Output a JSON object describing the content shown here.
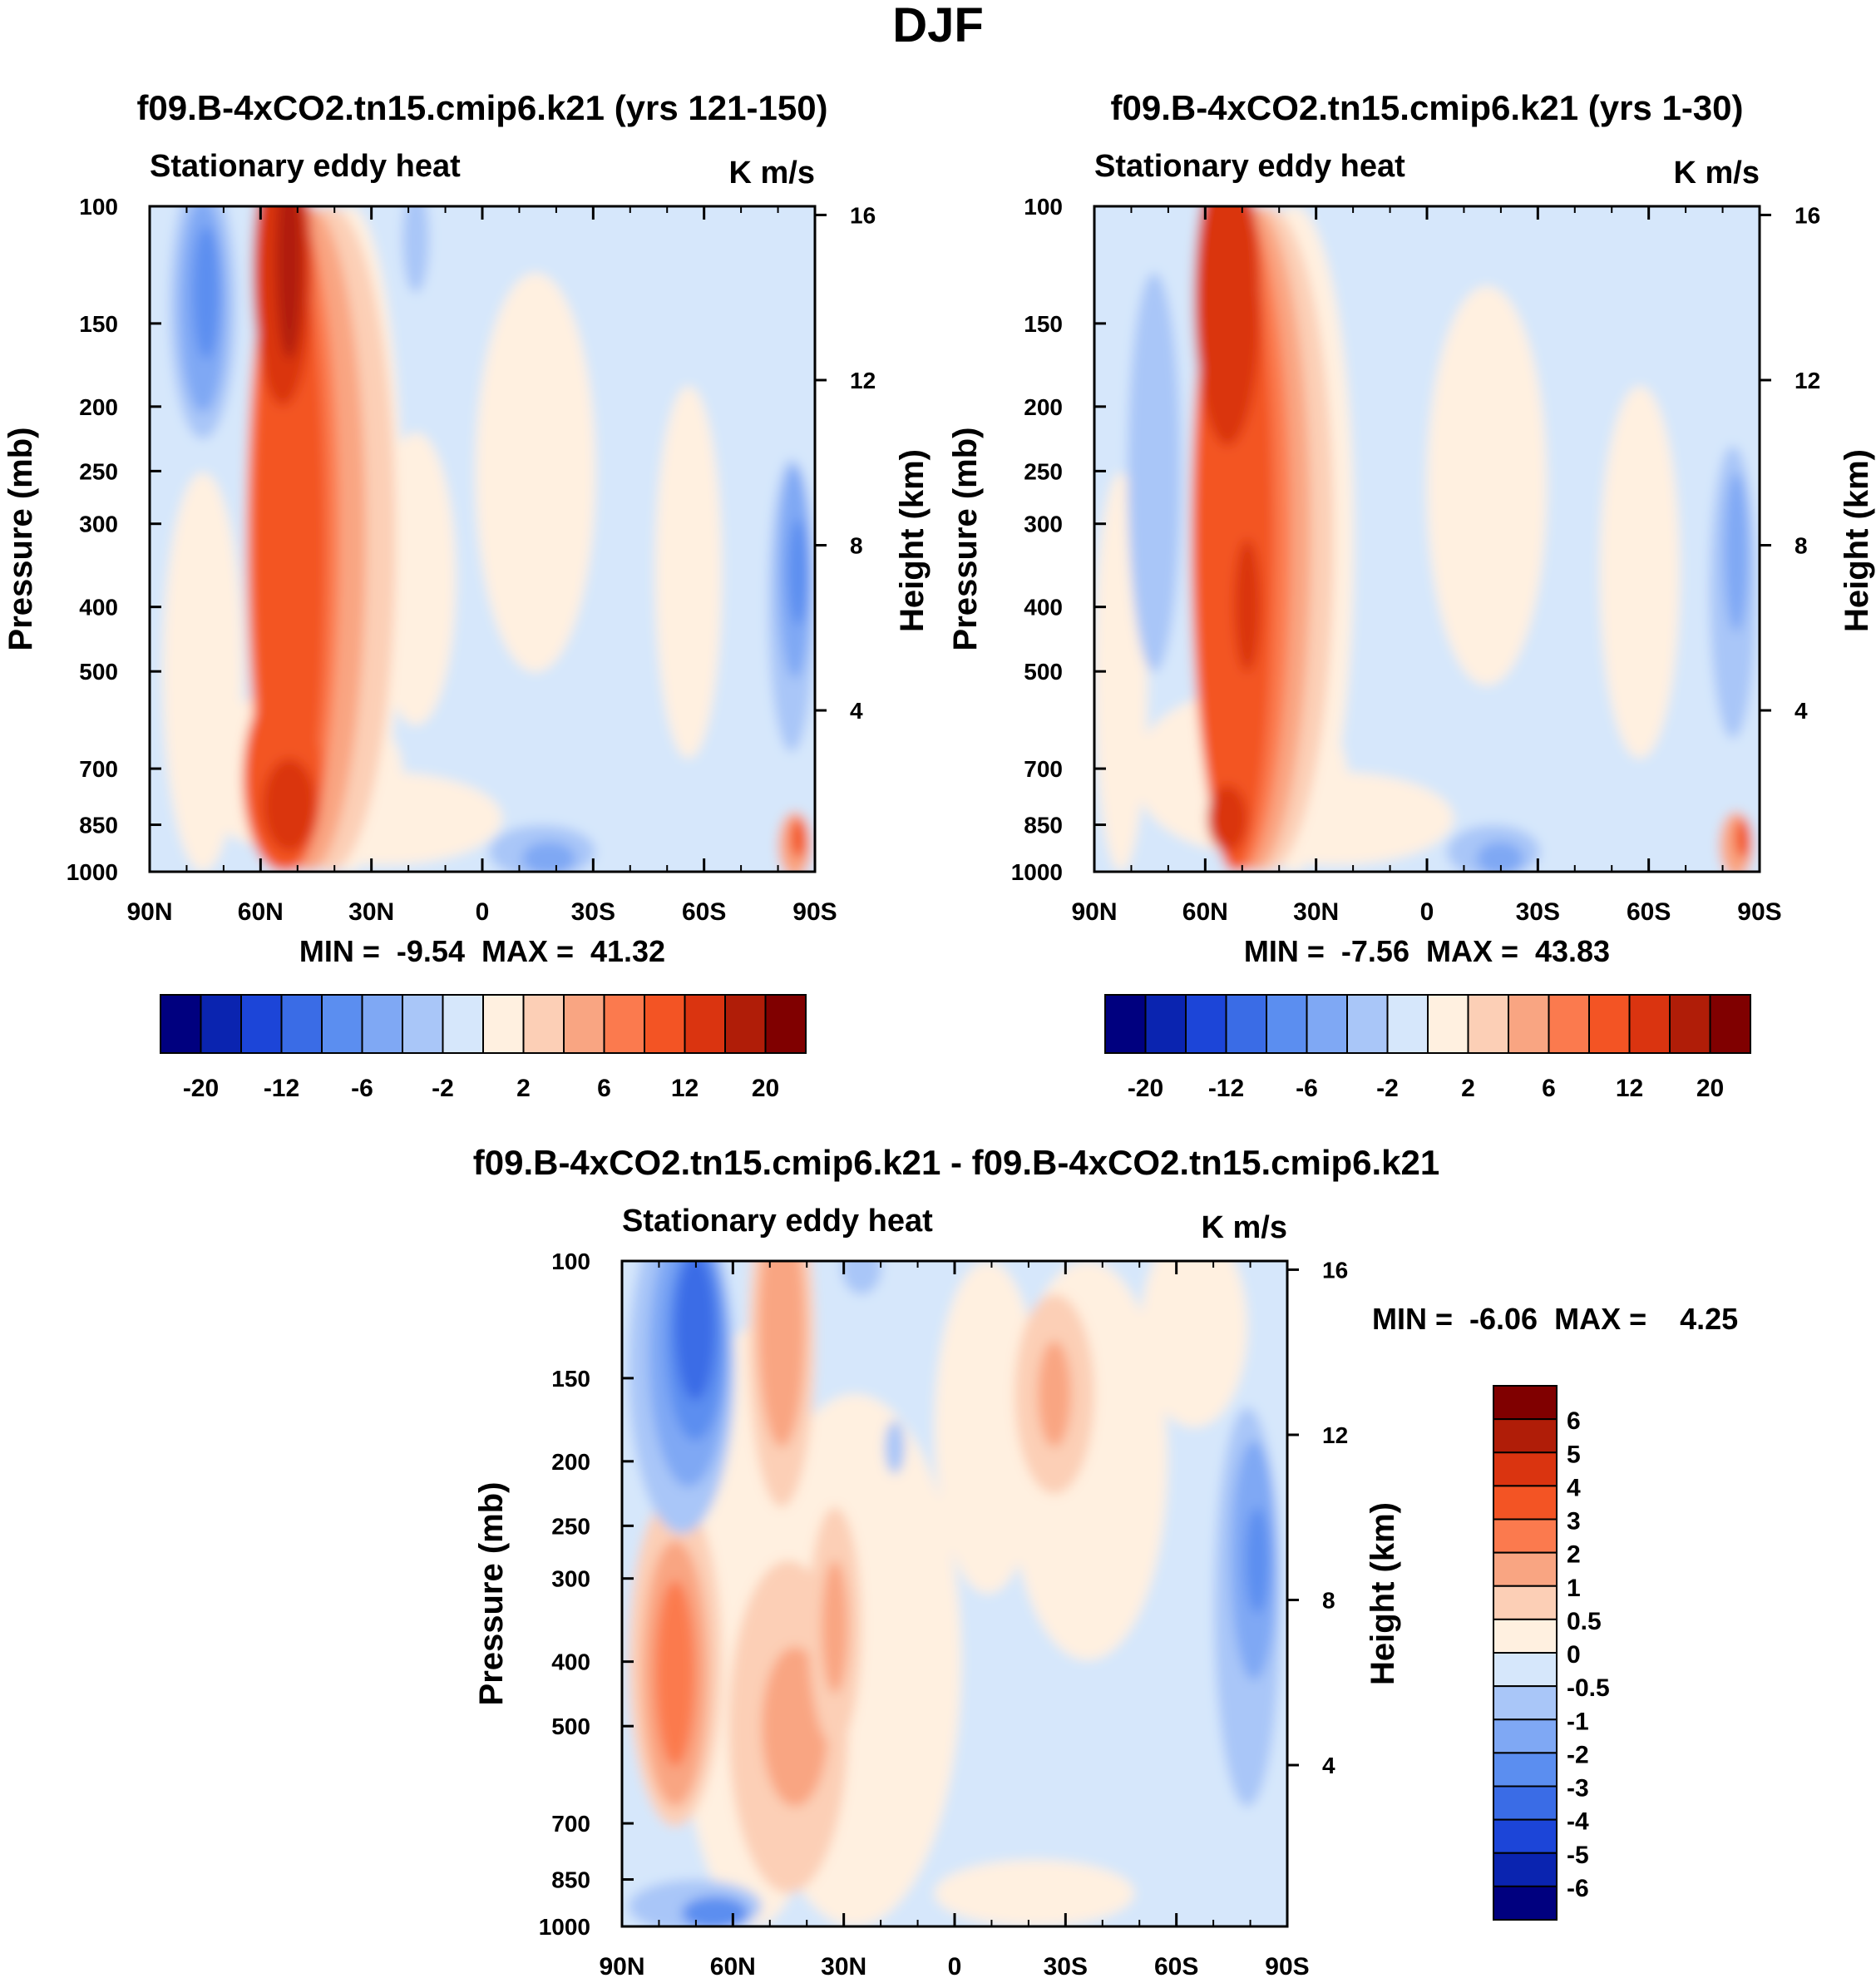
{
  "figure_title": "DJF",
  "colors": {
    "ramp_20": [
      "#00007f",
      "#0a24b0",
      "#1c45d8",
      "#3a6ce6",
      "#5b8ef0",
      "#7fa8f4",
      "#a9c6f8",
      "#d6e7fb",
      "#fff0e0",
      "#fccfb6",
      "#f9a582",
      "#fb7a4e",
      "#f35424",
      "#da3410",
      "#b01d08",
      "#800000"
    ],
    "ramp_diff": [
      "#00007f",
      "#0a24b0",
      "#1c45d8",
      "#3a6ce6",
      "#5b8ef0",
      "#7fa8f4",
      "#a9c6f8",
      "#d6e7fb",
      "#fff0e0",
      "#fccfb6",
      "#f9a582",
      "#fb7a4e",
      "#f35424",
      "#da3410",
      "#b01d08",
      "#800000"
    ]
  },
  "chart_data": [
    {
      "type": "heatmap",
      "panel": "top-left",
      "title": "f09.B-4xCO2.tn15.cmip6.k21 (yrs 121-150)",
      "left_label": "Stationary eddy heat",
      "units": "K m/s",
      "ylabel": "Pressure (mb)",
      "ylabel_right": "Height (km)",
      "x_ticks": [
        "90N",
        "60N",
        "30N",
        "0",
        "30S",
        "60S",
        "90S"
      ],
      "y_ticks": [
        "100",
        "150",
        "200",
        "250",
        "300",
        "400",
        "500",
        "700",
        "850",
        "1000"
      ],
      "y_ticks_right": [
        "16",
        "12",
        "8",
        "4"
      ],
      "ylim": [
        1000,
        100
      ],
      "stats": "MIN =  -9.54  MAX =  41.32",
      "colorbar_labels": [
        "-20",
        "-12",
        "-6",
        "-2",
        "2",
        "6",
        "12",
        "20"
      ],
      "levels": [
        -25,
        -20,
        -16,
        -12,
        -8,
        -6,
        -4,
        -2,
        0,
        2,
        4,
        6,
        8,
        12,
        16,
        20,
        25
      ]
    },
    {
      "type": "heatmap",
      "panel": "top-right",
      "title": "f09.B-4xCO2.tn15.cmip6.k21 (yrs 1-30)",
      "left_label": "Stationary eddy heat",
      "units": "K m/s",
      "ylabel": "Pressure (mb)",
      "ylabel_right": "Height (km)",
      "x_ticks": [
        "90N",
        "60N",
        "30N",
        "0",
        "30S",
        "60S",
        "90S"
      ],
      "y_ticks": [
        "100",
        "150",
        "200",
        "250",
        "300",
        "400",
        "500",
        "700",
        "850",
        "1000"
      ],
      "y_ticks_right": [
        "16",
        "12",
        "8",
        "4"
      ],
      "ylim": [
        1000,
        100
      ],
      "stats": "MIN =  -7.56  MAX =  43.83",
      "colorbar_labels": [
        "-20",
        "-12",
        "-6",
        "-2",
        "2",
        "6",
        "12",
        "20"
      ],
      "levels": [
        -25,
        -20,
        -16,
        -12,
        -8,
        -6,
        -4,
        -2,
        0,
        2,
        4,
        6,
        8,
        12,
        16,
        20,
        25
      ]
    },
    {
      "type": "heatmap",
      "panel": "bottom-difference",
      "title": "f09.B-4xCO2.tn15.cmip6.k21 - f09.B-4xCO2.tn15.cmip6.k21",
      "left_label": "Stationary eddy heat",
      "units": "K m/s",
      "ylabel": "Pressure (mb)",
      "ylabel_right": "Height (km)",
      "x_ticks": [
        "90N",
        "60N",
        "30N",
        "0",
        "30S",
        "60S",
        "90S"
      ],
      "y_ticks": [
        "100",
        "150",
        "200",
        "250",
        "300",
        "400",
        "500",
        "700",
        "850",
        "1000"
      ],
      "y_ticks_right": [
        "16",
        "12",
        "8",
        "4"
      ],
      "ylim": [
        1000,
        100
      ],
      "stats": "MIN =  -6.06  MAX =    4.25",
      "colorbar_labels": [
        "6",
        "5",
        "4",
        "3",
        "2",
        "1",
        "0.5",
        "0",
        "-0.5",
        "-1",
        "-2",
        "-3",
        "-4",
        "-5",
        "-6"
      ],
      "levels": [
        -7,
        -6,
        -5,
        -4,
        -3,
        -2,
        -1,
        -0.5,
        0,
        0.5,
        1,
        2,
        3,
        4,
        5,
        6,
        7
      ]
    }
  ]
}
